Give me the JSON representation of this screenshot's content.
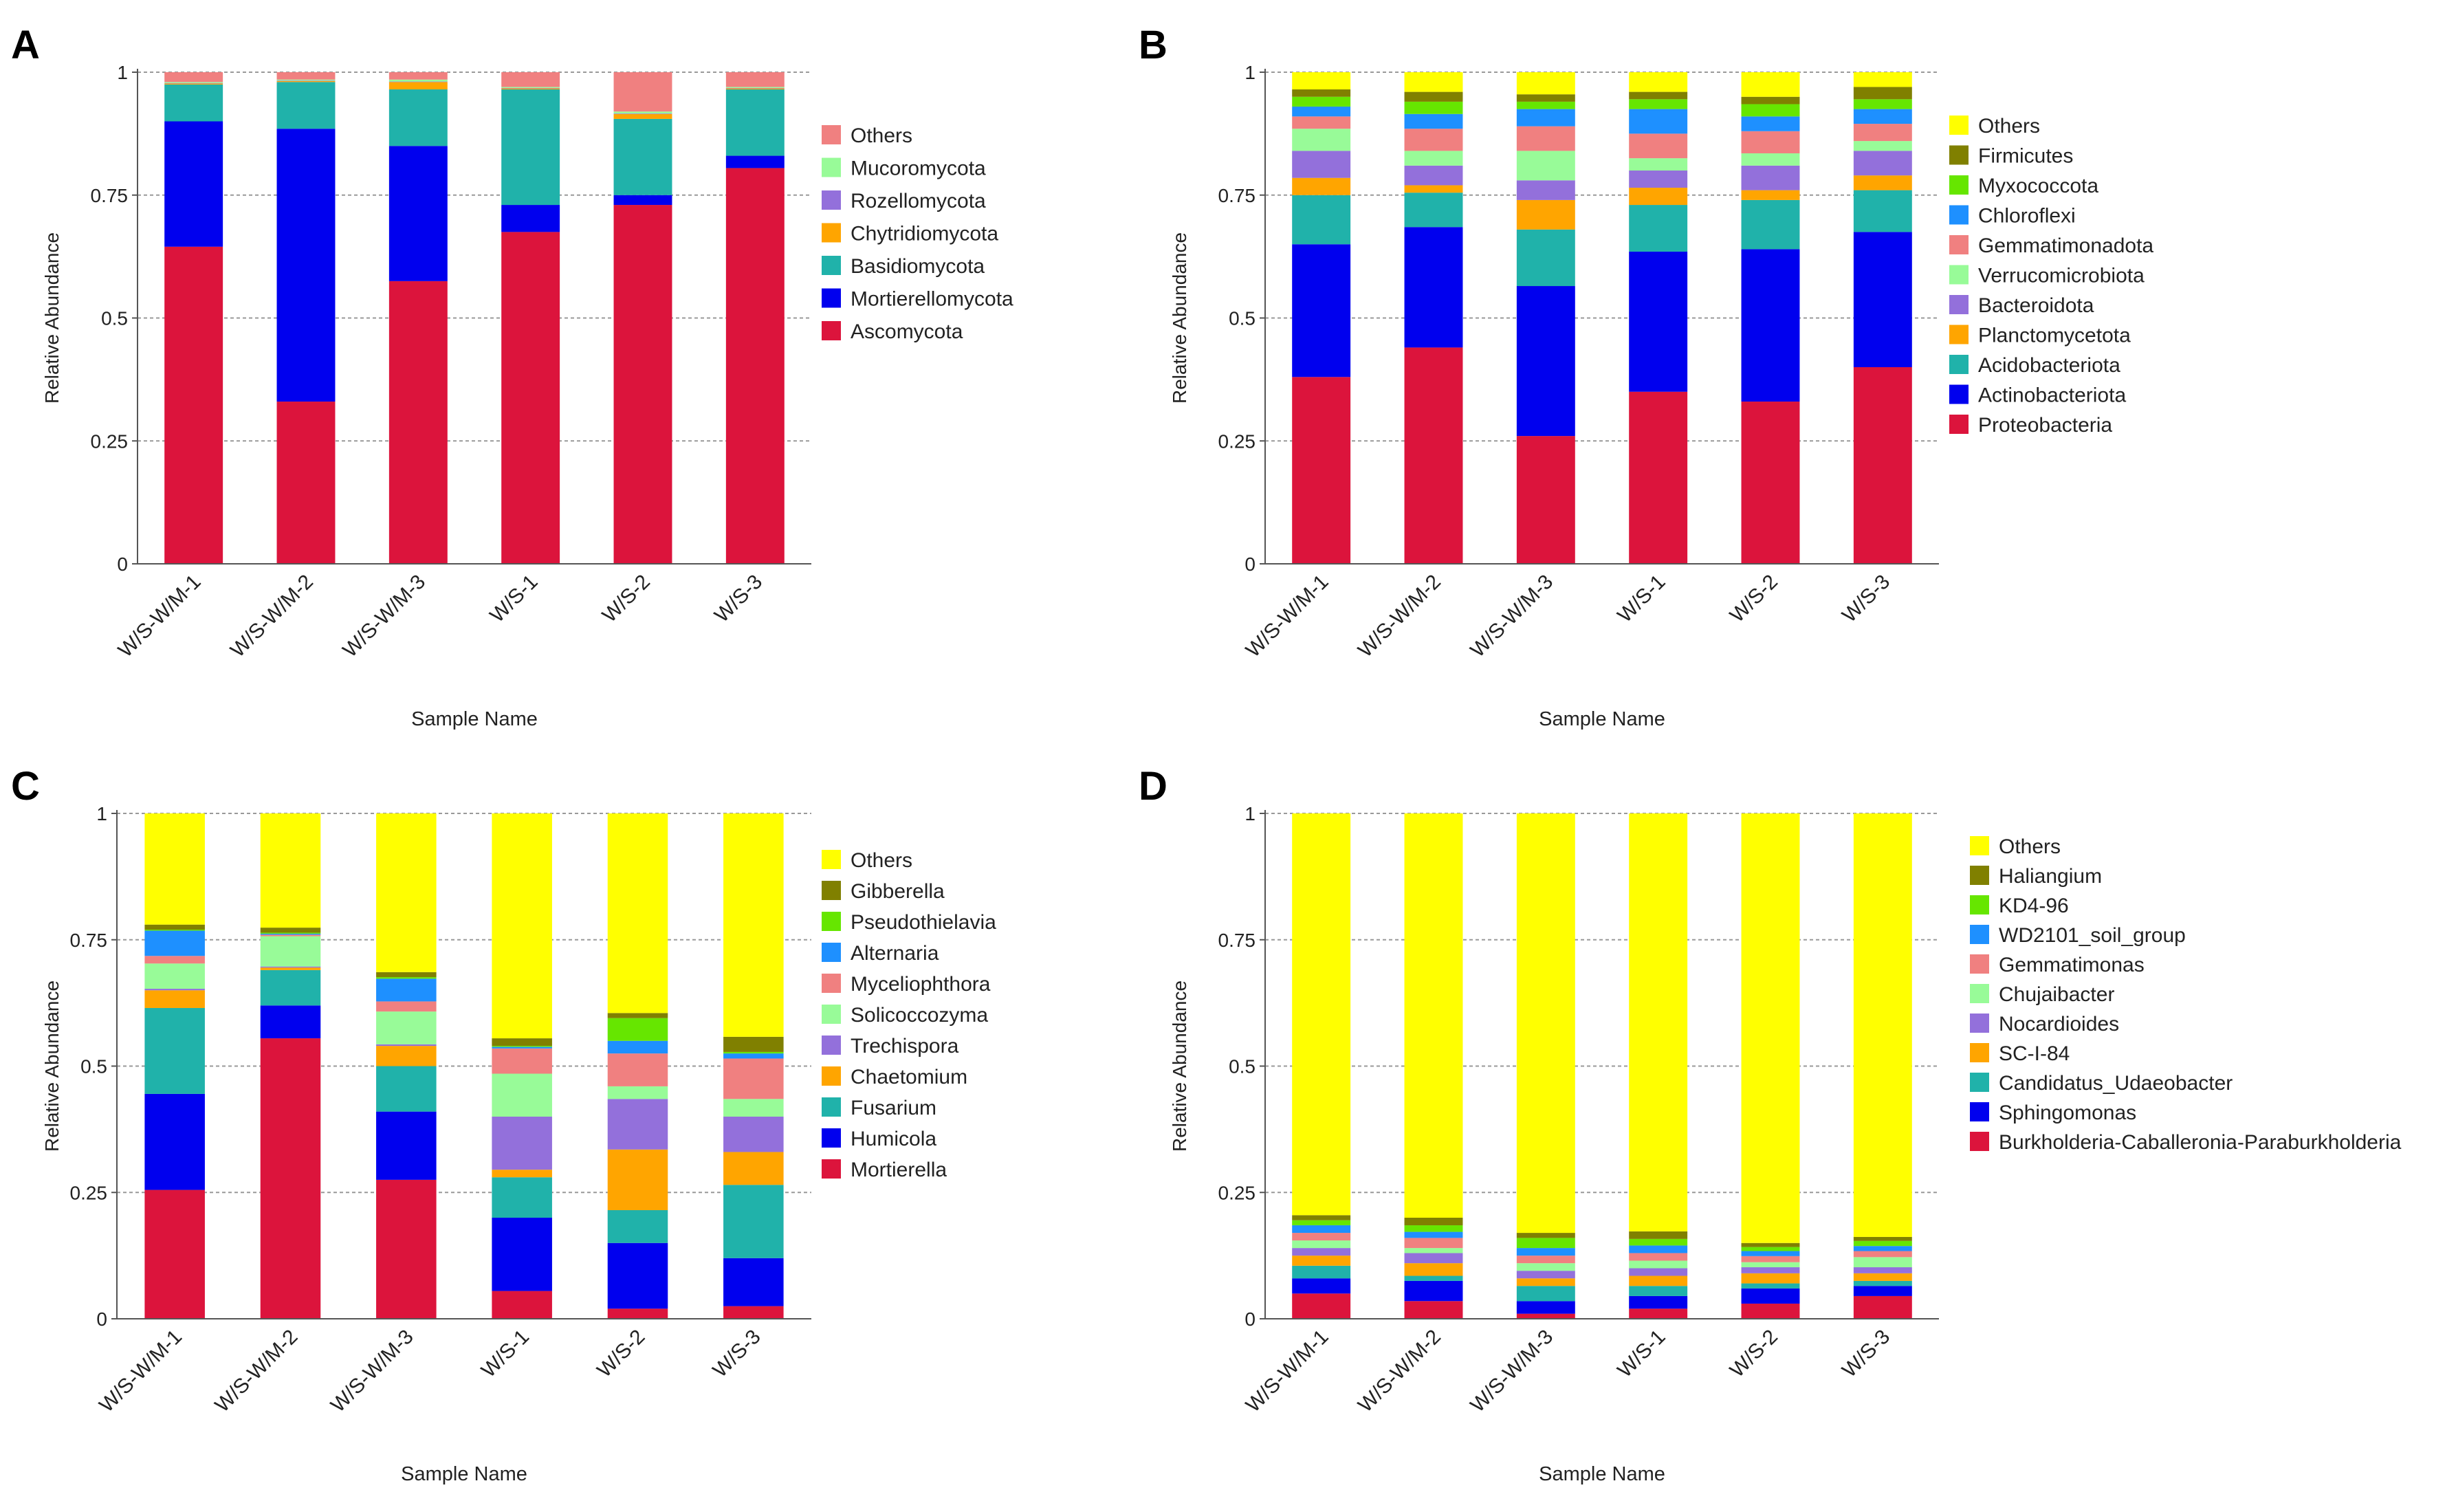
{
  "colors": {
    "crimson": "#DC143C",
    "blue": "#0000EE",
    "teal": "#20B2AA",
    "orange": "#FFA500",
    "purple": "#9370DB",
    "lightgreen": "#98FB98",
    "salmon": "#F08080",
    "dodger": "#1E90FF",
    "lawn": "#66E600",
    "olive": "#808000",
    "yellow": "#FFFF00"
  },
  "chart_data": [
    {
      "panel": "A",
      "type": "bar",
      "stacked": true,
      "xlabel": "Sample Name",
      "ylabel": "Relative Abundance",
      "ylim": [
        0,
        1
      ],
      "yticks": [
        "0",
        "0.25",
        "0.5",
        "0.75",
        "1"
      ],
      "grid": true,
      "legend_position": "right",
      "categories": [
        "W/S-W/M-1",
        "W/S-W/M-2",
        "W/S-W/M-3",
        "W/S-1",
        "W/S-2",
        "W/S-3"
      ],
      "series": [
        {
          "name": "Ascomycota",
          "color": "#DC143C",
          "values": [
            0.645,
            0.33,
            0.575,
            0.675,
            0.73,
            0.805
          ]
        },
        {
          "name": "Mortierellomycota",
          "color": "#0000EE",
          "values": [
            0.255,
            0.555,
            0.275,
            0.055,
            0.02,
            0.025
          ]
        },
        {
          "name": "Basidiomycota",
          "color": "#20B2AA",
          "values": [
            0.075,
            0.095,
            0.115,
            0.235,
            0.155,
            0.135
          ]
        },
        {
          "name": "Chytridiomycota",
          "color": "#FFA500",
          "values": [
            0.002,
            0.002,
            0.015,
            0.002,
            0.01,
            0.002
          ]
        },
        {
          "name": "Rozellomycota",
          "color": "#9370DB",
          "values": [
            0.001,
            0.001,
            0.001,
            0.001,
            0.001,
            0.001
          ]
        },
        {
          "name": "Mucoromycota",
          "color": "#98FB98",
          "values": [
            0.002,
            0.002,
            0.004,
            0.002,
            0.004,
            0.002
          ]
        },
        {
          "name": "Others",
          "color": "#F08080",
          "values": [
            0.02,
            0.015,
            0.015,
            0.03,
            0.08,
            0.03
          ]
        }
      ]
    },
    {
      "panel": "B",
      "type": "bar",
      "stacked": true,
      "xlabel": "Sample Name",
      "ylabel": "Relative Abundance",
      "ylim": [
        0,
        1
      ],
      "yticks": [
        "0",
        "0.25",
        "0.5",
        "0.75",
        "1"
      ],
      "grid": true,
      "legend_position": "right",
      "categories": [
        "W/S-W/M-1",
        "W/S-W/M-2",
        "W/S-W/M-3",
        "W/S-1",
        "W/S-2",
        "W/S-3"
      ],
      "series": [
        {
          "name": "Proteobacteria",
          "color": "#DC143C",
          "values": [
            0.38,
            0.44,
            0.26,
            0.35,
            0.33,
            0.4
          ]
        },
        {
          "name": "Actinobacteriota",
          "color": "#0000EE",
          "values": [
            0.27,
            0.245,
            0.305,
            0.285,
            0.31,
            0.275
          ]
        },
        {
          "name": "Acidobacteriota",
          "color": "#20B2AA",
          "values": [
            0.1,
            0.07,
            0.115,
            0.095,
            0.1,
            0.085
          ]
        },
        {
          "name": "Planctomycetota",
          "color": "#FFA500",
          "values": [
            0.035,
            0.015,
            0.06,
            0.035,
            0.02,
            0.03
          ]
        },
        {
          "name": "Bacteroidota",
          "color": "#9370DB",
          "values": [
            0.055,
            0.04,
            0.04,
            0.035,
            0.05,
            0.05
          ]
        },
        {
          "name": "Verrucomicrobiota",
          "color": "#98FB98",
          "values": [
            0.045,
            0.03,
            0.06,
            0.025,
            0.025,
            0.02
          ]
        },
        {
          "name": "Gemmatimonadota",
          "color": "#F08080",
          "values": [
            0.025,
            0.045,
            0.05,
            0.05,
            0.045,
            0.035
          ]
        },
        {
          "name": "Chloroflexi",
          "color": "#1E90FF",
          "values": [
            0.02,
            0.03,
            0.035,
            0.05,
            0.03,
            0.03
          ]
        },
        {
          "name": "Myxococcota",
          "color": "#66E600",
          "values": [
            0.02,
            0.025,
            0.015,
            0.02,
            0.025,
            0.02
          ]
        },
        {
          "name": "Firmicutes",
          "color": "#808000",
          "values": [
            0.015,
            0.02,
            0.015,
            0.015,
            0.015,
            0.025
          ]
        },
        {
          "name": "Others",
          "color": "#FFFF00",
          "values": [
            0.035,
            0.04,
            0.045,
            0.04,
            0.05,
            0.03
          ]
        }
      ]
    },
    {
      "panel": "C",
      "type": "bar",
      "stacked": true,
      "xlabel": "Sample Name",
      "ylabel": "Relative Abundance",
      "ylim": [
        0,
        1
      ],
      "yticks": [
        "0",
        "0.25",
        "0.5",
        "0.75",
        "1"
      ],
      "grid": true,
      "legend_position": "right",
      "categories": [
        "W/S-W/M-1",
        "W/S-W/M-2",
        "W/S-W/M-3",
        "W/S-1",
        "W/S-2",
        "W/S-3"
      ],
      "series": [
        {
          "name": "Mortierella",
          "color": "#DC143C",
          "values": [
            0.255,
            0.555,
            0.275,
            0.055,
            0.02,
            0.025
          ]
        },
        {
          "name": "Humicola",
          "color": "#0000EE",
          "values": [
            0.19,
            0.065,
            0.135,
            0.145,
            0.13,
            0.095
          ]
        },
        {
          "name": "Fusarium",
          "color": "#20B2AA",
          "values": [
            0.17,
            0.07,
            0.09,
            0.08,
            0.065,
            0.145
          ]
        },
        {
          "name": "Chaetomium",
          "color": "#FFA500",
          "values": [
            0.035,
            0.005,
            0.04,
            0.015,
            0.12,
            0.065
          ]
        },
        {
          "name": "Trechispora",
          "color": "#9370DB",
          "values": [
            0.003,
            0.002,
            0.003,
            0.105,
            0.1,
            0.07
          ]
        },
        {
          "name": "Solicoccozyma",
          "color": "#98FB98",
          "values": [
            0.05,
            0.06,
            0.065,
            0.085,
            0.025,
            0.035
          ]
        },
        {
          "name": "Myceliophthora",
          "color": "#F08080",
          "values": [
            0.015,
            0.003,
            0.02,
            0.05,
            0.065,
            0.08
          ]
        },
        {
          "name": "Alternaria",
          "color": "#1E90FF",
          "values": [
            0.05,
            0.002,
            0.045,
            0.003,
            0.025,
            0.01
          ]
        },
        {
          "name": "Pseudothielavia",
          "color": "#66E600",
          "values": [
            0.002,
            0.002,
            0.003,
            0.002,
            0.045,
            0.003
          ]
        },
        {
          "name": "Gibberella",
          "color": "#808000",
          "values": [
            0.01,
            0.01,
            0.01,
            0.015,
            0.01,
            0.03
          ]
        },
        {
          "name": "Others",
          "color": "#FFFF00",
          "values": [
            0.22,
            0.226,
            0.314,
            0.445,
            0.395,
            0.442
          ]
        }
      ]
    },
    {
      "panel": "D",
      "type": "bar",
      "stacked": true,
      "xlabel": "Sample Name",
      "ylabel": "Relative Abundance",
      "ylim": [
        0,
        1
      ],
      "yticks": [
        "0",
        "0.25",
        "0.5",
        "0.75",
        "1"
      ],
      "grid": true,
      "legend_position": "right",
      "categories": [
        "W/S-W/M-1",
        "W/S-W/M-2",
        "W/S-W/M-3",
        "W/S-1",
        "W/S-2",
        "W/S-3"
      ],
      "series": [
        {
          "name": "Burkholderia-Caballeronia-Paraburkholderia",
          "color": "#DC143C",
          "values": [
            0.05,
            0.035,
            0.01,
            0.02,
            0.03,
            0.045
          ]
        },
        {
          "name": "Sphingomonas",
          "color": "#0000EE",
          "values": [
            0.03,
            0.04,
            0.025,
            0.025,
            0.03,
            0.02
          ]
        },
        {
          "name": "Candidatus_Udaeobacter",
          "color": "#20B2AA",
          "values": [
            0.025,
            0.01,
            0.03,
            0.02,
            0.01,
            0.01
          ]
        },
        {
          "name": "SC-I-84",
          "color": "#FFA500",
          "values": [
            0.02,
            0.025,
            0.015,
            0.02,
            0.02,
            0.015
          ]
        },
        {
          "name": "Nocardioides",
          "color": "#9370DB",
          "values": [
            0.015,
            0.02,
            0.015,
            0.015,
            0.012,
            0.012
          ]
        },
        {
          "name": "Chujaibacter",
          "color": "#98FB98",
          "values": [
            0.015,
            0.01,
            0.015,
            0.015,
            0.01,
            0.02
          ]
        },
        {
          "name": "Gemmatimonas",
          "color": "#F08080",
          "values": [
            0.015,
            0.02,
            0.015,
            0.015,
            0.012,
            0.012
          ]
        },
        {
          "name": "WD2101_soil_group",
          "color": "#1E90FF",
          "values": [
            0.015,
            0.012,
            0.015,
            0.015,
            0.01,
            0.01
          ]
        },
        {
          "name": "KD4-96",
          "color": "#66E600",
          "values": [
            0.01,
            0.013,
            0.02,
            0.013,
            0.008,
            0.01
          ]
        },
        {
          "name": "Haliangium",
          "color": "#808000",
          "values": [
            0.01,
            0.015,
            0.01,
            0.015,
            0.008,
            0.008
          ]
        },
        {
          "name": "Others",
          "color": "#FFFF00",
          "values": [
            0.795,
            0.8,
            0.83,
            0.827,
            0.85,
            0.838
          ]
        }
      ]
    }
  ]
}
